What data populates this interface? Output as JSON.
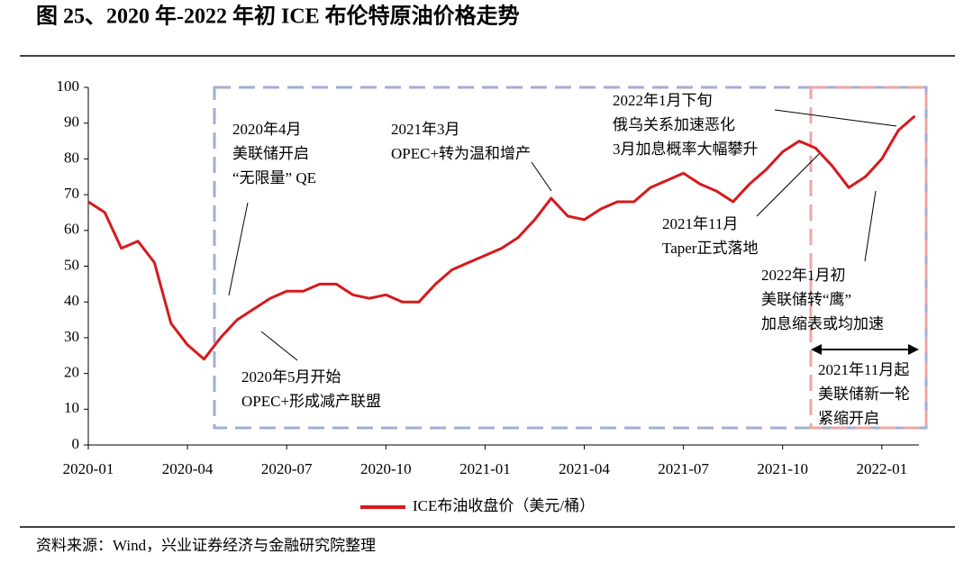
{
  "chart_data": {
    "type": "line",
    "title": "图 25、2020 年-2022 年初 ICE 布伦特原油价格走势",
    "source": "资料来源：Wind，兴业证券经济与金融研究院整理",
    "categories": [
      "2020-01",
      null,
      null,
      null,
      null,
      null,
      "2020-04",
      null,
      null,
      null,
      null,
      null,
      "2020-07",
      null,
      null,
      null,
      null,
      null,
      "2020-10",
      null,
      null,
      null,
      null,
      null,
      "2021-01",
      null,
      null,
      null,
      null,
      null,
      "2021-04",
      null,
      null,
      null,
      null,
      null,
      "2021-07",
      null,
      null,
      null,
      null,
      null,
      "2021-10",
      null,
      null,
      null,
      null,
      null,
      "2022-01",
      null,
      null
    ],
    "series": [
      {
        "name": "ICE布油收盘价（美元/桶）",
        "color": "#d7191c",
        "values": [
          68,
          65,
          55,
          57,
          51,
          34,
          28,
          24,
          30,
          35,
          38,
          41,
          43,
          43,
          45,
          45,
          42,
          41,
          42,
          40,
          40,
          45,
          49,
          51,
          53,
          55,
          58,
          63,
          69,
          64,
          63,
          66,
          68,
          68,
          72,
          74,
          76,
          73,
          71,
          68,
          73,
          77,
          82,
          85,
          83,
          78,
          72,
          75,
          80,
          88,
          92
        ]
      }
    ],
    "ylim": [
      0,
      100
    ],
    "yticks": [
      0,
      10,
      20,
      30,
      40,
      50,
      60,
      70,
      80,
      90,
      100
    ],
    "annotations": [
      {
        "lines": [
          "2020年4月",
          "美联储开启",
          "“无限量” QE"
        ]
      },
      {
        "lines": [
          "2020年5月开始",
          "OPEC+形成减产联盟"
        ]
      },
      {
        "lines": [
          "2021年3月",
          "OPEC+转为温和增产"
        ]
      },
      {
        "lines": [
          "2021年11月",
          "Taper正式落地"
        ]
      },
      {
        "lines": [
          "2022年1月下旬",
          "俄乌关系加速恶化",
          "3月加息概率大幅攀升"
        ]
      },
      {
        "lines": [
          "2022年1月初",
          "美联储转“鹰”",
          "加息缩表或均加速"
        ]
      },
      {
        "lines": [
          "2021年11月起",
          "美联储新一轮",
          "紧缩开启"
        ]
      }
    ]
  }
}
